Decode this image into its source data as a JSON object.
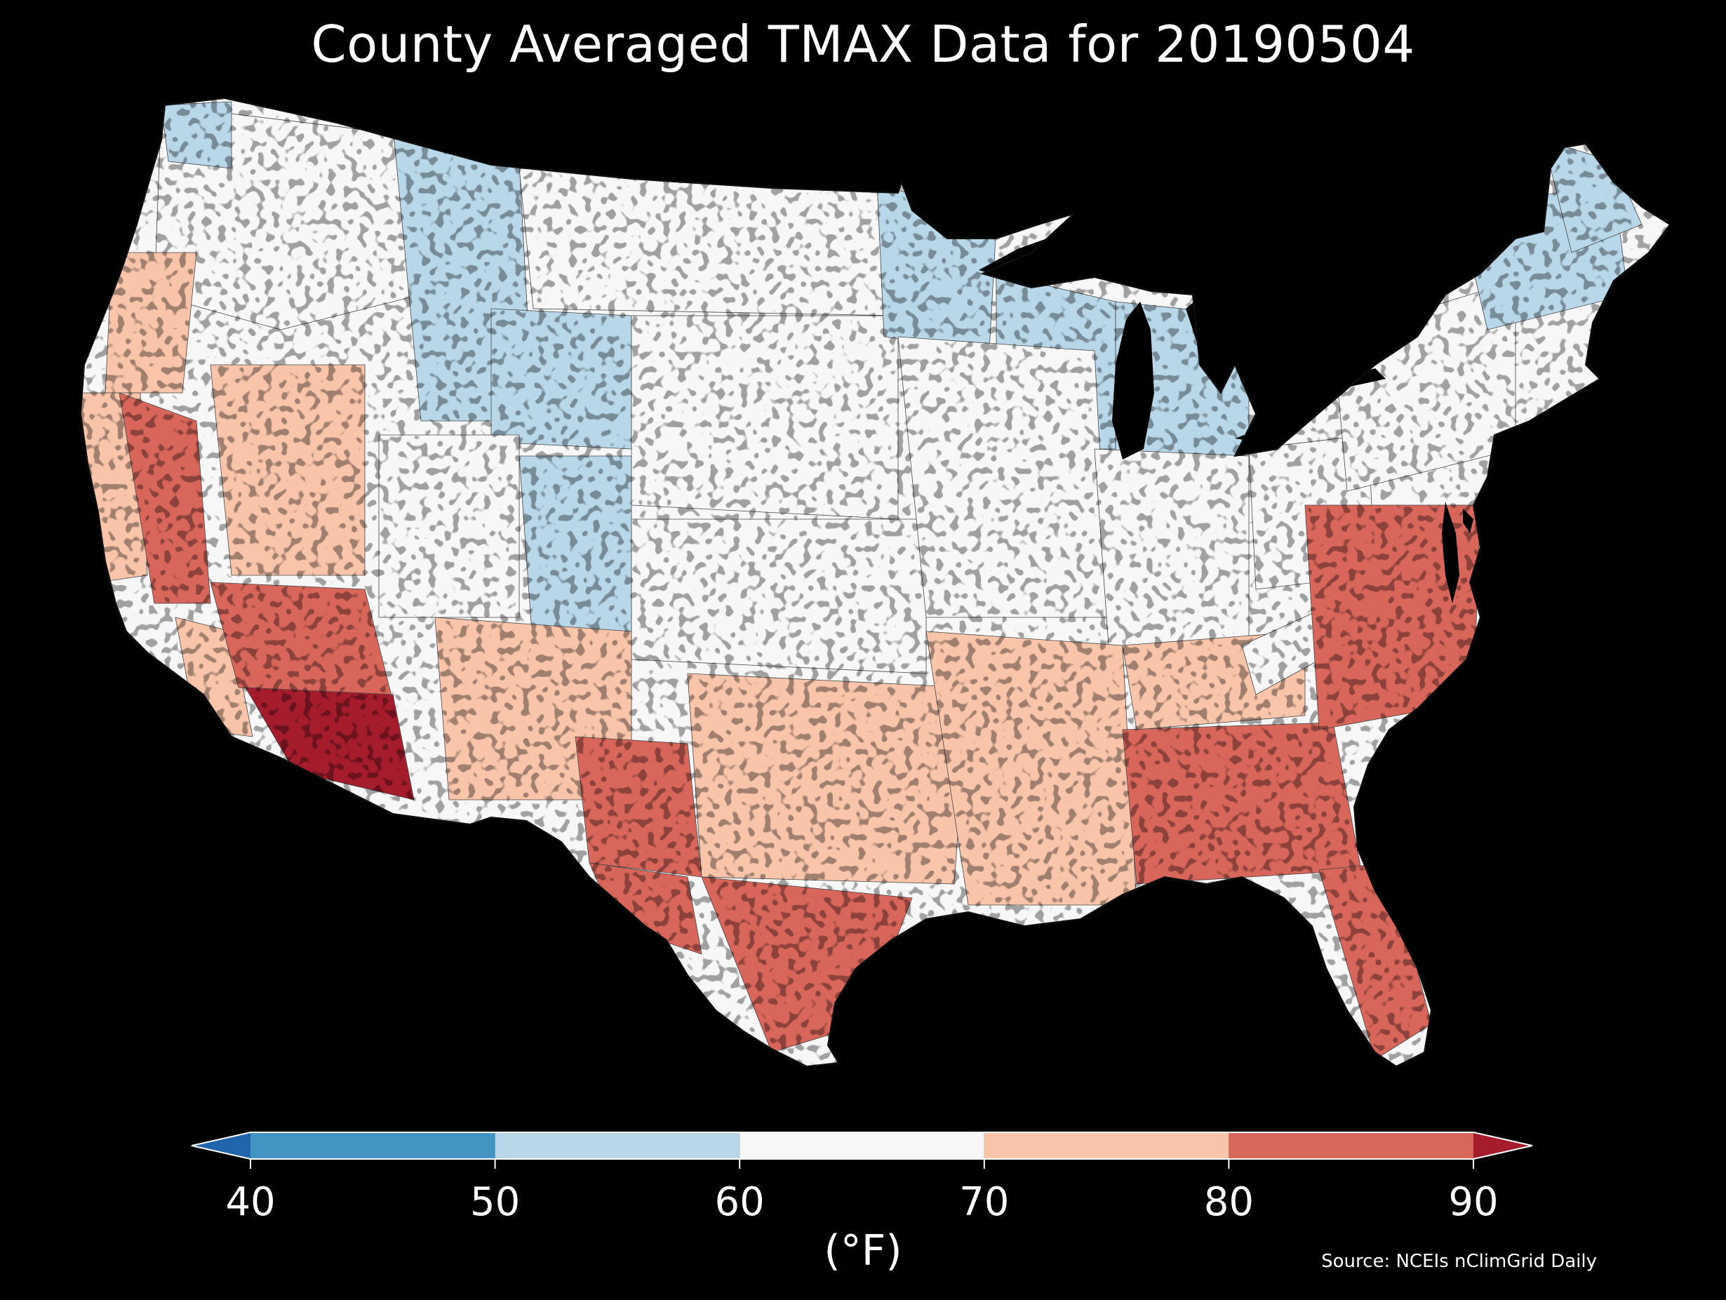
{
  "title": "County Averaged TMAX Data for 20190504",
  "map": {
    "region": "Contiguous United States",
    "subdivision": "counties",
    "variable": "TMAX",
    "date": "20190504",
    "regional_values_f": [
      {
        "region": "Pacific Northwest interior",
        "value": 64
      },
      {
        "region": "Washington Cascades",
        "value": 56
      },
      {
        "region": "Oregon coast",
        "value": 72
      },
      {
        "region": "Northern California coast",
        "value": 73
      },
      {
        "region": "California Central Valley",
        "value": 82
      },
      {
        "region": "Southern California coast",
        "value": 74
      },
      {
        "region": "Southern California desert",
        "value": 86
      },
      {
        "region": "Southwest Arizona",
        "value": 91
      },
      {
        "region": "Great Basin / Nevada",
        "value": 71
      },
      {
        "region": "Idaho / western Montana",
        "value": 57
      },
      {
        "region": "Wyoming",
        "value": 56
      },
      {
        "region": "Colorado Rockies",
        "value": 55
      },
      {
        "region": "Utah",
        "value": 68
      },
      {
        "region": "New Mexico",
        "value": 74
      },
      {
        "region": "West Texas",
        "value": 80
      },
      {
        "region": "Rio Grande valley",
        "value": 82
      },
      {
        "region": "North Dakota / Montana plains",
        "value": 61
      },
      {
        "region": "South Dakota / Nebraska",
        "value": 62
      },
      {
        "region": "Kansas / Oklahoma panhandle",
        "value": 67
      },
      {
        "region": "Central Texas",
        "value": 77
      },
      {
        "region": "South Texas coast",
        "value": 82
      },
      {
        "region": "Minnesota",
        "value": 56
      },
      {
        "region": "Wisconsin",
        "value": 59
      },
      {
        "region": "Michigan",
        "value": 55
      },
      {
        "region": "Iowa / Missouri",
        "value": 62
      },
      {
        "region": "Illinois / Indiana",
        "value": 64
      },
      {
        "region": "Ohio",
        "value": 67
      },
      {
        "region": "Arkansas / Louisiana",
        "value": 76
      },
      {
        "region": "Tennessee",
        "value": 78
      },
      {
        "region": "Appalachian ridge",
        "value": 68
      },
      {
        "region": "Georgia / Alabama",
        "value": 82
      },
      {
        "region": "Carolinas / Virginia",
        "value": 83
      },
      {
        "region": "Florida peninsula",
        "value": 85
      },
      {
        "region": "Pennsylvania / New York",
        "value": 62
      },
      {
        "region": "New England",
        "value": 55
      },
      {
        "region": "Maine",
        "value": 51
      }
    ]
  },
  "colorbar": {
    "ticks": [
      "40",
      "50",
      "60",
      "70",
      "80",
      "90"
    ],
    "extend": "both",
    "bins": [
      {
        "from": 40,
        "to": 50,
        "color": "#4393c3"
      },
      {
        "from": 50,
        "to": 60,
        "color": "#b8d8ea"
      },
      {
        "from": 60,
        "to": 70,
        "color": "#f7f7f7"
      },
      {
        "from": 70,
        "to": 80,
        "color": "#f9c5aa"
      },
      {
        "from": 80,
        "to": 90,
        "color": "#d8665a"
      }
    ],
    "under_color": "#2166ac",
    "over_color": "#a51c2d",
    "unit": "(°F)"
  },
  "source": "Source: NCEIs nClimGrid Daily",
  "colors": {
    "background": "#000000",
    "text": "#ffffff"
  }
}
